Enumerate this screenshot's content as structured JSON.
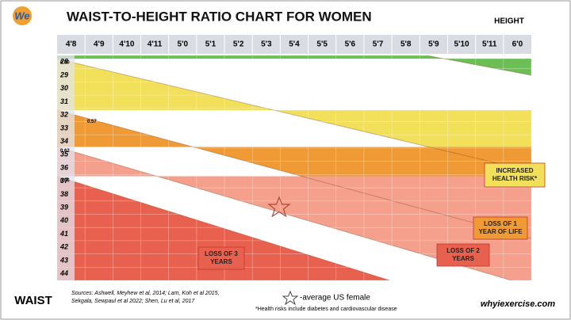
{
  "chart_data": {
    "type": "zone",
    "title": "WAIST-TO-HEIGHT RATIO CHART FOR WOMEN",
    "logo": "We",
    "x_label": "HEIGHT",
    "y_label": "WAIST",
    "categories": [
      "4'8",
      "4'9",
      "4'10",
      "4'11",
      "5'0",
      "5'1",
      "5'2",
      "5'3",
      "5'4",
      "5'5",
      "5'6",
      "5'7",
      "5'8",
      "5'9",
      "5'10",
      "5'11",
      "6'0"
    ],
    "rows": [
      28,
      29,
      30,
      31,
      32,
      33,
      34,
      35,
      36,
      37,
      38,
      39,
      40,
      41,
      42,
      43,
      44
    ],
    "boundaries": [
      {
        "value": 0.4
      },
      {
        "value": 0.5,
        "label": "0.50"
      },
      {
        "value": 0.57,
        "label": "0.57"
      },
      {
        "value": 0.62,
        "label": "0.62"
      },
      {
        "value": 0.66,
        "label": "0.66"
      }
    ],
    "zone_colors": [
      "#cfcfcf",
      "#6cbf55",
      "#f2e05a",
      "#ef9a35",
      "#f4a08c",
      "#e8614f"
    ],
    "zone_labels": [
      {
        "lines": [
          "INCREASED",
          "HEALTH RISK*"
        ],
        "color": "#f2e05a"
      },
      {
        "lines": [
          "LOSS OF 1",
          "YEAR OF LIFE"
        ],
        "color": "#ef9a35"
      },
      {
        "lines": [
          "LOSS OF 2",
          "YEARS"
        ],
        "color": "#e8614f"
      },
      {
        "lines": [
          "LOSS OF 3",
          "YEARS"
        ],
        "color": "#e8614f"
      }
    ],
    "legend": "-average US female",
    "sources": [
      "Sources:  Ashwell, Meyhew et al, 2014;  Lam, Koh et al 2015,",
      "Sekgala, Sewpaul et al 2022; Shen, Lu et al, 2017"
    ],
    "footnote": "*Health risks include diabetes and cardiovascular disease",
    "website": "whyiexercise.com"
  }
}
